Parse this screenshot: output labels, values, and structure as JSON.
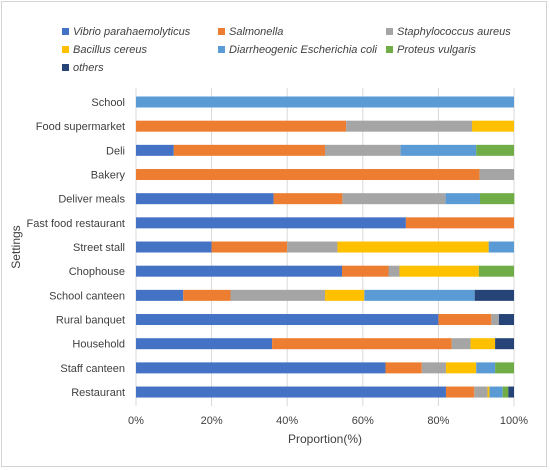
{
  "chart_data": {
    "type": "bar",
    "orientation": "horizontal",
    "stacked": true,
    "percent": true,
    "xlabel": "Proportion(%)",
    "ylabel": "Settings",
    "xlim": [
      0,
      100
    ],
    "x_ticks": [
      "0%",
      "20%",
      "40%",
      "60%",
      "80%",
      "100%"
    ],
    "grid": true,
    "legend_position": "top",
    "categories": [
      "School",
      "Food supermarket",
      "Deli",
      "Bakery",
      "Deliver meals",
      "Fast food restaurant",
      "Street stall",
      "Chophouse",
      "School canteen",
      "Rural banquet",
      "Household",
      "Staff canteen",
      "Restaurant"
    ],
    "series": [
      {
        "name": "Vibrio parahaemolyticus",
        "color": "#4472C4",
        "values": [
          0,
          0,
          10,
          0,
          36.4,
          71.4,
          20,
          54.5,
          12.5,
          80,
          36,
          66,
          82
        ]
      },
      {
        "name": "Salmonella",
        "color": "#ED7D31",
        "values": [
          0,
          55.6,
          40,
          90.9,
          18.2,
          28.6,
          20,
          12.3,
          12.5,
          14,
          47.5,
          9.6,
          7.5
        ]
      },
      {
        "name": "Staphylococcus aureus",
        "color": "#A5A5A5",
        "values": [
          0,
          33.3,
          20,
          9.1,
          27.3,
          0,
          13.3,
          2.9,
          25,
          2,
          5,
          6.4,
          3.5
        ]
      },
      {
        "name": "Bacillus cereus",
        "color": "#FFC000",
        "values": [
          0,
          11.1,
          0,
          0,
          0,
          0,
          40,
          21,
          10.4,
          0,
          6.5,
          8,
          0.5
        ]
      },
      {
        "name": "Diarrheogenic Escherichia coli",
        "color": "#5B9BD5",
        "values": [
          100,
          0,
          20,
          0,
          9.1,
          0,
          6.7,
          0,
          29.2,
          0,
          0,
          5,
          3.5
        ]
      },
      {
        "name": "Proteus vulgaris",
        "color": "#70AD47",
        "values": [
          0,
          0,
          10,
          0,
          9.1,
          0,
          0,
          9.3,
          0,
          0,
          0,
          5,
          1.5
        ]
      },
      {
        "name": "others",
        "color": "#264478",
        "values": [
          0,
          0,
          0,
          0,
          0,
          0,
          0,
          0,
          10.4,
          4,
          5,
          0,
          1.5
        ]
      }
    ]
  }
}
